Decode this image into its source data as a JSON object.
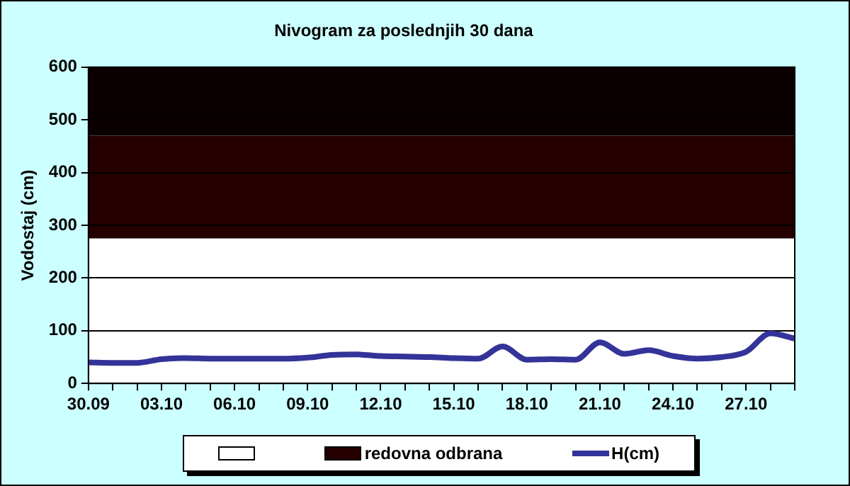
{
  "chart_data": {
    "type": "line",
    "title": "Nivogram za poslednjih 30 dana",
    "ylabel": "Vodostaj (cm)",
    "categories": [
      "30.09",
      null,
      null,
      "03.10",
      null,
      null,
      "06.10",
      null,
      null,
      "09.10",
      null,
      null,
      "12.10",
      null,
      null,
      "15.10",
      null,
      null,
      "18.10",
      null,
      null,
      "21.10",
      null,
      null,
      "24.10",
      null,
      null,
      "27.10",
      null,
      null
    ],
    "series": [
      {
        "name": "H(cm)",
        "color": "#333399",
        "values": [
          40,
          39,
          39,
          46,
          48,
          47,
          47,
          47,
          47,
          49,
          54,
          55,
          52,
          51,
          50,
          48,
          47,
          70,
          45,
          46,
          45,
          78,
          56,
          63,
          52,
          47,
          50,
          60,
          95,
          85
        ]
      }
    ],
    "ylim": [
      0,
      600
    ],
    "yticks": [
      0,
      100,
      200,
      300,
      400,
      500,
      600
    ],
    "bands": [
      {
        "axis": "y",
        "from": 0,
        "to": 275,
        "color": "#ffffff"
      },
      {
        "axis": "y",
        "from": 275,
        "to": 470,
        "label": "redovna odbrana",
        "color": "#240000"
      },
      {
        "axis": "y",
        "from": 470,
        "to": 600,
        "color": "#0a0000"
      }
    ],
    "grid": "y",
    "legend": "bottom",
    "marker": "none",
    "line_style": "solid"
  }
}
